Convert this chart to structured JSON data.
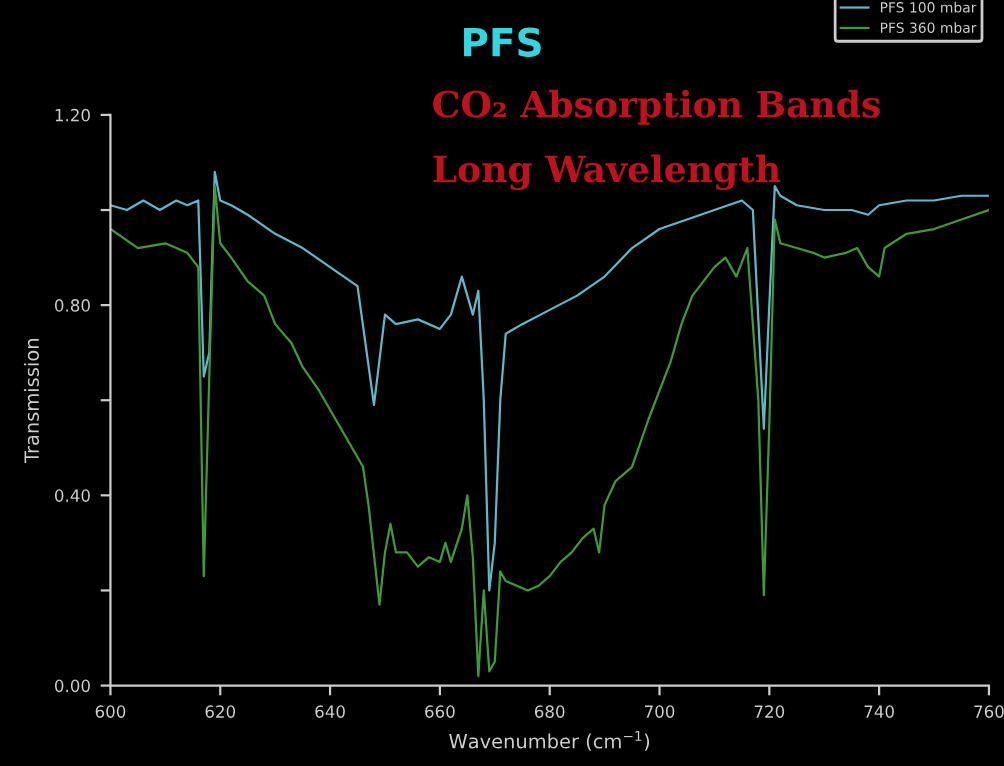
{
  "chart_data": {
    "type": "line",
    "title": "PFS",
    "xlabel": "Wavenumber (cm$^{−1}$)",
    "ylabel": "Transmission",
    "annotations": [
      "CO₂ Absorption Bands",
      "Long Wavelength"
    ],
    "xlim": [
      600,
      760
    ],
    "xticks": [
      600,
      620,
      640,
      660,
      680,
      700,
      720,
      740,
      760
    ],
    "ylim": [
      0,
      1.2
    ],
    "yticks": [
      {
        "value": 0,
        "label": "0.00"
      },
      {
        "value": 0.2,
        "label": null
      },
      {
        "value": 0.4,
        "label": "0.40"
      },
      {
        "value": 0.6,
        "label": null
      },
      {
        "value": 0.8,
        "label": "0.80"
      },
      {
        "value": 1.0,
        "label": null
      },
      {
        "value": 1.2,
        "label": "1.20"
      }
    ],
    "grid": false,
    "legend": "top right",
    "marker": "none",
    "line_style": "solid",
    "series": [
      {
        "name": "PFS 100 mbar",
        "color": "#5fb8c8",
        "x": [
          600,
          603,
          606,
          609,
          612,
          614,
          616,
          617,
          618,
          619,
          620,
          622,
          625,
          630,
          635,
          640,
          645,
          648,
          650,
          652,
          656,
          660,
          662,
          664,
          666,
          667,
          668,
          669,
          670,
          671,
          672,
          675,
          680,
          685,
          690,
          695,
          700,
          705,
          710,
          715,
          717,
          719,
          720,
          721,
          722,
          725,
          730,
          735,
          738,
          740,
          745,
          750,
          755,
          760
        ],
        "values": [
          1.01,
          1.0,
          1.02,
          1.0,
          1.02,
          1.01,
          1.02,
          0.65,
          0.7,
          1.08,
          1.02,
          1.01,
          0.99,
          0.95,
          0.92,
          0.88,
          0.84,
          0.59,
          0.78,
          0.76,
          0.77,
          0.75,
          0.78,
          0.86,
          0.78,
          0.83,
          0.6,
          0.2,
          0.3,
          0.6,
          0.74,
          0.76,
          0.79,
          0.82,
          0.86,
          0.92,
          0.96,
          0.98,
          1.0,
          1.02,
          1.0,
          0.54,
          0.8,
          1.05,
          1.03,
          1.01,
          1.0,
          1.0,
          0.99,
          1.01,
          1.02,
          1.02,
          1.03,
          1.03
        ]
      },
      {
        "name": "PFS 360 mbar",
        "color": "#3f9a3a",
        "x": [
          600,
          605,
          610,
          614,
          616,
          617,
          618,
          619,
          620,
          622,
          625,
          628,
          630,
          633,
          635,
          638,
          640,
          642,
          644,
          646,
          647,
          649,
          650,
          651,
          652,
          654,
          656,
          658,
          660,
          661,
          662,
          664,
          665,
          666,
          667,
          668,
          669,
          670,
          671,
          672,
          674,
          676,
          678,
          680,
          682,
          684,
          686,
          688,
          689,
          690,
          692,
          695,
          698,
          700,
          702,
          704,
          706,
          708,
          710,
          712,
          714,
          716,
          718,
          719,
          720,
          721,
          722,
          725,
          728,
          730,
          734,
          736,
          738,
          740,
          741,
          745,
          750,
          755,
          760
        ],
        "values": [
          0.96,
          0.92,
          0.93,
          0.91,
          0.88,
          0.23,
          0.65,
          1.05,
          0.93,
          0.9,
          0.85,
          0.82,
          0.76,
          0.72,
          0.67,
          0.62,
          0.58,
          0.54,
          0.5,
          0.46,
          0.38,
          0.17,
          0.28,
          0.34,
          0.28,
          0.28,
          0.25,
          0.27,
          0.26,
          0.3,
          0.26,
          0.33,
          0.4,
          0.27,
          0.02,
          0.2,
          0.03,
          0.05,
          0.24,
          0.22,
          0.21,
          0.2,
          0.21,
          0.23,
          0.26,
          0.28,
          0.31,
          0.33,
          0.28,
          0.38,
          0.43,
          0.46,
          0.56,
          0.62,
          0.68,
          0.76,
          0.82,
          0.85,
          0.88,
          0.9,
          0.86,
          0.92,
          0.6,
          0.19,
          0.55,
          0.98,
          0.93,
          0.92,
          0.91,
          0.9,
          0.91,
          0.92,
          0.88,
          0.86,
          0.92,
          0.95,
          0.96,
          0.98,
          1.0
        ]
      }
    ]
  }
}
